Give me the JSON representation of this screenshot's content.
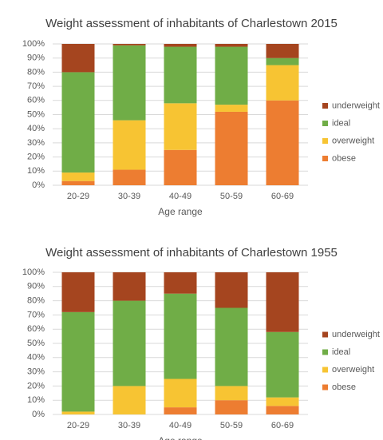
{
  "chart_data": [
    {
      "type": "stacked_bar",
      "title": "Weight assessment of inhabitants of Charlestown 2015",
      "x_label": "Age range",
      "categories": [
        "20-29",
        "30-39",
        "40-49",
        "50-59",
        "60-69"
      ],
      "series": [
        {
          "name": "obese",
          "color": "#ed7d31",
          "values": [
            3,
            11,
            25,
            52,
            60
          ]
        },
        {
          "name": "overweight",
          "color": "#f7c433",
          "values": [
            6,
            35,
            33,
            5,
            25
          ]
        },
        {
          "name": "ideal",
          "color": "#70ad47",
          "values": [
            71,
            53,
            40,
            41,
            5
          ]
        },
        {
          "name": "underweight",
          "color": "#a5451f",
          "values": [
            20,
            1,
            2,
            2,
            10
          ]
        }
      ],
      "ylim": [
        0,
        100
      ],
      "yticks": [
        {
          "value": 0,
          "label": "0%"
        },
        {
          "value": 10,
          "label": "10%"
        },
        {
          "value": 20,
          "label": "20%"
        },
        {
          "value": 30,
          "label": "30%"
        },
        {
          "value": 40,
          "label": "40%"
        },
        {
          "value": 50,
          "label": "50%"
        },
        {
          "value": 60,
          "label": "60%"
        },
        {
          "value": 70,
          "label": "70%"
        },
        {
          "value": 80,
          "label": "80%"
        },
        {
          "value": 90,
          "label": "90%"
        },
        {
          "value": 100,
          "label": "100%"
        }
      ],
      "grid": true,
      "legend": "right"
    },
    {
      "type": "stacked_bar",
      "title": "Weight assessment of inhabitants of Charlestown 1955",
      "x_label": "Age range",
      "categories": [
        "20-29",
        "30-39",
        "40-49",
        "50-59",
        "60-69"
      ],
      "series": [
        {
          "name": "obese",
          "color": "#ed7d31",
          "values": [
            0,
            0,
            5,
            10,
            6
          ]
        },
        {
          "name": "overweight",
          "color": "#f7c433",
          "values": [
            2,
            20,
            20,
            10,
            6
          ]
        },
        {
          "name": "ideal",
          "color": "#70ad47",
          "values": [
            70,
            60,
            60,
            55,
            46
          ]
        },
        {
          "name": "underweight",
          "color": "#a5451f",
          "values": [
            28,
            20,
            15,
            25,
            42
          ]
        }
      ],
      "ylim": [
        0,
        100
      ],
      "yticks": [
        {
          "value": 0,
          "label": "0%"
        },
        {
          "value": 10,
          "label": "10%"
        },
        {
          "value": 20,
          "label": "20%"
        },
        {
          "value": 30,
          "label": "30%"
        },
        {
          "value": 40,
          "label": "40%"
        },
        {
          "value": 50,
          "label": "50%"
        },
        {
          "value": 60,
          "label": "60%"
        },
        {
          "value": 70,
          "label": "70%"
        },
        {
          "value": 80,
          "label": "80%"
        },
        {
          "value": 90,
          "label": "90%"
        },
        {
          "value": 100,
          "label": "100%"
        }
      ],
      "grid": true,
      "legend": "right"
    }
  ]
}
